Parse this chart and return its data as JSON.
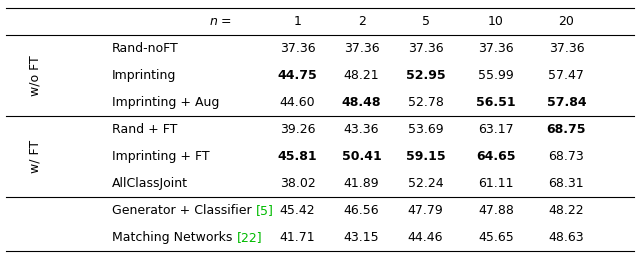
{
  "header_n": "n =",
  "header_cols": [
    "1",
    "2",
    "5",
    "10",
    "20"
  ],
  "sections": [
    {
      "label": "w/o FT",
      "rows": [
        {
          "name": "Rand-noFT",
          "values": [
            "37.36",
            "37.36",
            "37.36",
            "37.36",
            "37.36"
          ],
          "bold": [
            false,
            false,
            false,
            false,
            false
          ]
        },
        {
          "name": "Imprinting",
          "values": [
            "44.75",
            "48.21",
            "52.95",
            "55.99",
            "57.47"
          ],
          "bold": [
            true,
            false,
            true,
            false,
            false
          ]
        },
        {
          "name": "Imprinting + Aug",
          "values": [
            "44.60",
            "48.48",
            "52.78",
            "56.51",
            "57.84"
          ],
          "bold": [
            false,
            true,
            false,
            true,
            true
          ]
        }
      ]
    },
    {
      "label": "w/ FT",
      "rows": [
        {
          "name": "Rand + FT",
          "values": [
            "39.26",
            "43.36",
            "53.69",
            "63.17",
            "68.75"
          ],
          "bold": [
            false,
            false,
            false,
            false,
            true
          ]
        },
        {
          "name": "Imprinting + FT",
          "values": [
            "45.81",
            "50.41",
            "59.15",
            "64.65",
            "68.73"
          ],
          "bold": [
            true,
            true,
            true,
            true,
            false
          ]
        },
        {
          "name": "AllClassJoint",
          "values": [
            "38.02",
            "41.89",
            "52.24",
            "61.11",
            "68.31"
          ],
          "bold": [
            false,
            false,
            false,
            false,
            false
          ]
        }
      ]
    },
    {
      "label": "",
      "rows": [
        {
          "name": "Generator + Classifier ",
          "ref": "[5]",
          "values": [
            "45.42",
            "46.56",
            "47.79",
            "47.88",
            "48.22"
          ],
          "bold": [
            false,
            false,
            false,
            false,
            false
          ]
        },
        {
          "name": "Matching Networks ",
          "ref": "[22]",
          "values": [
            "41.71",
            "43.15",
            "44.46",
            "45.65",
            "48.63"
          ],
          "bold": [
            false,
            false,
            false,
            false,
            false
          ]
        }
      ]
    }
  ],
  "ref_color": "#00bb00",
  "fontsize": 9.0,
  "label_fontsize": 9.0,
  "bg_color": "#ffffff"
}
